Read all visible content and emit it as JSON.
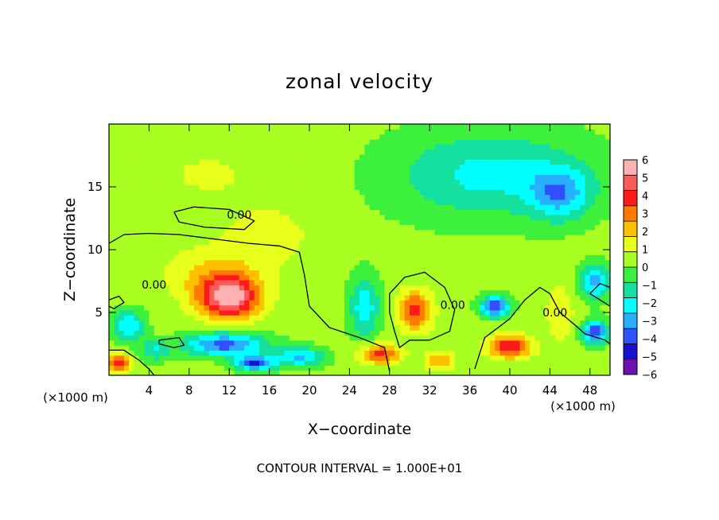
{
  "chart_data": {
    "type": "heatmap",
    "title": "zonal velocity",
    "xlabel": "X−coordinate",
    "ylabel": "Z−coordinate",
    "x_unit_left": "(×1000 m)",
    "x_unit_right": "(×1000 m)",
    "xlim": [
      0,
      50
    ],
    "ylim": [
      0,
      20
    ],
    "x_ticks": [
      4,
      8,
      12,
      16,
      20,
      24,
      28,
      32,
      36,
      40,
      44,
      48
    ],
    "x_tick_labels": [
      "4",
      "8",
      "12",
      "16",
      "20",
      "24",
      "28",
      "32",
      "36",
      "40",
      "44",
      "48"
    ],
    "y_ticks": [
      5,
      10,
      15
    ],
    "y_tick_labels": [
      "5",
      "10",
      "15"
    ],
    "footer": "CONTOUR INTERVAL = 1.000E+01",
    "colorbar": {
      "range": [
        -6,
        6
      ],
      "labels": [
        "6",
        "5",
        "4",
        "3",
        "2",
        "1",
        "0",
        "−1",
        "−2",
        "−3",
        "−4",
        "−5",
        "−6"
      ],
      "label_values": [
        6,
        5,
        4,
        3,
        2,
        1,
        0,
        -1,
        -2,
        -3,
        -4,
        -5,
        -6
      ],
      "colors": [
        "#ffb0b0",
        "#ff5a5a",
        "#ff1a1a",
        "#ff7a00",
        "#ffc000",
        "#e8ff1a",
        "#aaff22",
        "#3cf03c",
        "#14e0a0",
        "#00ffff",
        "#28b0ff",
        "#3050ff",
        "#1810d0",
        "#7010b0"
      ]
    },
    "background_value": 0.3,
    "features": [
      {
        "x": 12.0,
        "z": 6.2,
        "value": 5.2,
        "sx": 3.0,
        "sz": 1.7
      },
      {
        "x": 10.5,
        "z": 8.0,
        "value": 1.5,
        "sx": 5.0,
        "sz": 2.2
      },
      {
        "x": 30.5,
        "z": 5.2,
        "value": 3.5,
        "sx": 1.7,
        "sz": 1.6
      },
      {
        "x": 40.0,
        "z": 2.3,
        "value": 4.0,
        "sx": 2.2,
        "sz": 0.9
      },
      {
        "x": 38.5,
        "z": 5.5,
        "value": -4.6,
        "sx": 1.4,
        "sz": 0.8
      },
      {
        "x": 48.5,
        "z": 3.5,
        "value": -4.5,
        "sx": 1.3,
        "sz": 0.9
      },
      {
        "x": 48.5,
        "z": 7.5,
        "value": -3.2,
        "sx": 1.5,
        "sz": 1.4
      },
      {
        "x": 25.5,
        "z": 5.5,
        "value": -2.6,
        "sx": 1.5,
        "sz": 2.5
      },
      {
        "x": 11.5,
        "z": 2.5,
        "value": -4.2,
        "sx": 4.0,
        "sz": 0.9
      },
      {
        "x": 14.5,
        "z": 1.0,
        "value": -4.5,
        "sx": 2.0,
        "sz": 0.6
      },
      {
        "x": 19.0,
        "z": 1.5,
        "value": -3.0,
        "sx": 2.5,
        "sz": 0.8
      },
      {
        "x": 27.0,
        "z": 1.7,
        "value": 3.6,
        "sx": 2.0,
        "sz": 0.8
      },
      {
        "x": 33.0,
        "z": 1.2,
        "value": 2.0,
        "sx": 1.5,
        "sz": 0.8
      },
      {
        "x": 45.0,
        "z": 5.0,
        "value": 1.2,
        "sx": 1.5,
        "sz": 2.5
      },
      {
        "x": 2.0,
        "z": 4.0,
        "value": -3.0,
        "sx": 1.5,
        "sz": 1.2
      },
      {
        "x": 1.0,
        "z": 1.0,
        "value": 3.5,
        "sx": 1.2,
        "sz": 0.7
      },
      {
        "x": 4.5,
        "z": 2.0,
        "value": -2.0,
        "sx": 1.5,
        "sz": 0.8
      },
      {
        "x": 38.0,
        "z": 16.0,
        "value": -2.3,
        "sx": 10.0,
        "sz": 3.5
      },
      {
        "x": 45.0,
        "z": 14.5,
        "value": -2.8,
        "sx": 3.0,
        "sz": 2.0
      },
      {
        "x": 10.0,
        "z": 16.0,
        "value": 0.6,
        "sx": 10.0,
        "sz": 4.0
      },
      {
        "x": 16.0,
        "z": 11.0,
        "value": 1.0,
        "sx": 4.0,
        "sz": 2.0
      }
    ],
    "contours": [
      {
        "label": "0.00",
        "label_x": 13.0,
        "label_z": 12.8,
        "points": [
          [
            6.5,
            13.0
          ],
          [
            8.5,
            13.4
          ],
          [
            12.0,
            13.2
          ],
          [
            14.5,
            12.3
          ],
          [
            13.5,
            11.6
          ],
          [
            9.5,
            11.8
          ],
          [
            7.0,
            12.2
          ],
          [
            6.5,
            13.0
          ]
        ]
      },
      {
        "label": "0.00",
        "label_x": 4.5,
        "label_z": 7.2,
        "points": [
          [
            0.0,
            10.5
          ],
          [
            1.5,
            11.2
          ],
          [
            4.0,
            11.3
          ],
          [
            7.0,
            11.2
          ],
          [
            11.0,
            10.8
          ],
          [
            14.0,
            10.5
          ],
          [
            17.0,
            10.3
          ],
          [
            19.0,
            9.8
          ],
          [
            19.5,
            8.0
          ],
          [
            20.0,
            5.5
          ],
          [
            22.0,
            3.8
          ],
          [
            25.0,
            3.0
          ],
          [
            27.5,
            2.2
          ],
          [
            28.0,
            0.3
          ]
        ]
      },
      {
        "label": "0.00",
        "label_x": 34.3,
        "label_z": 5.6,
        "points": [
          [
            28.0,
            6.5
          ],
          [
            29.5,
            7.8
          ],
          [
            31.5,
            8.2
          ],
          [
            33.5,
            7.0
          ],
          [
            34.5,
            5.2
          ],
          [
            34.0,
            3.5
          ],
          [
            32.0,
            2.8
          ],
          [
            30.0,
            2.8
          ],
          [
            29.0,
            2.2
          ],
          [
            28.5,
            3.5
          ],
          [
            28.0,
            5.0
          ],
          [
            28.0,
            6.5
          ]
        ]
      },
      {
        "label": "0.00",
        "label_x": 44.5,
        "label_z": 5.0,
        "points": [
          [
            36.5,
            0.5
          ],
          [
            37.5,
            3.0
          ],
          [
            40.0,
            4.5
          ],
          [
            41.5,
            6.0
          ],
          [
            43.0,
            7.0
          ],
          [
            44.0,
            6.5
          ],
          [
            45.0,
            5.0
          ],
          [
            46.5,
            4.0
          ],
          [
            47.5,
            3.3
          ],
          [
            49.5,
            2.8
          ],
          [
            50.0,
            2.5
          ]
        ]
      },
      {
        "label": "",
        "label_x": 0,
        "label_z": 0,
        "points": [
          [
            5.0,
            2.8
          ],
          [
            7.0,
            3.0
          ],
          [
            7.5,
            2.4
          ],
          [
            6.5,
            2.2
          ],
          [
            5.0,
            2.5
          ],
          [
            5.0,
            2.8
          ]
        ]
      },
      {
        "label": "",
        "label_x": 0,
        "label_z": 0,
        "points": [
          [
            0.0,
            2.0
          ],
          [
            1.5,
            2.0
          ],
          [
            3.0,
            1.2
          ],
          [
            4.0,
            0.5
          ],
          [
            4.5,
            0.0
          ]
        ]
      },
      {
        "label": "",
        "label_x": 0,
        "label_z": 0,
        "points": [
          [
            0.0,
            6.0
          ],
          [
            1.0,
            6.3
          ],
          [
            1.5,
            5.8
          ],
          [
            0.5,
            5.3
          ],
          [
            0.0,
            5.5
          ]
        ]
      },
      {
        "label": "",
        "label_x": 0,
        "label_z": 0,
        "points": [
          [
            50.0,
            5.5
          ],
          [
            49.0,
            6.0
          ],
          [
            48.0,
            6.5
          ],
          [
            49.0,
            7.3
          ],
          [
            50.0,
            7.0
          ]
        ]
      }
    ]
  }
}
